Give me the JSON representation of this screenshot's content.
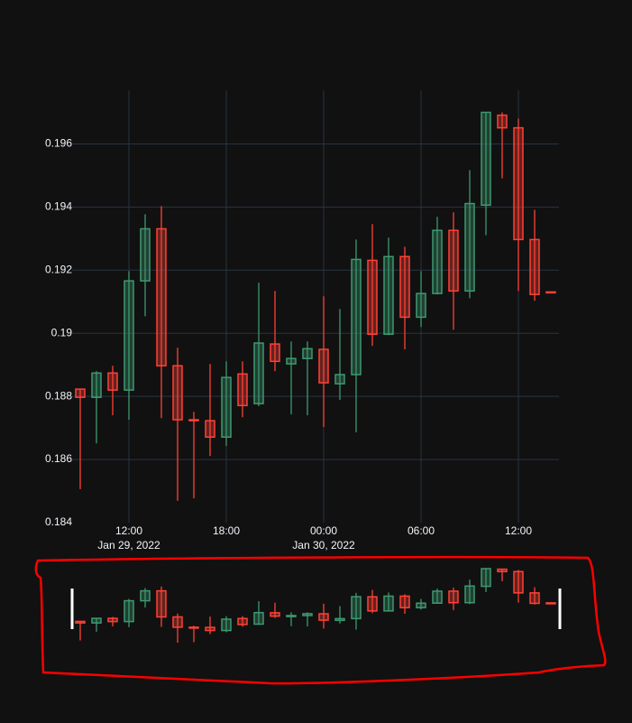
{
  "chart_data": {
    "type": "candlestick",
    "x": [
      "2022-01-29T09:00",
      "2022-01-29T10:00",
      "2022-01-29T11:00",
      "2022-01-29T12:00",
      "2022-01-29T13:00",
      "2022-01-29T14:00",
      "2022-01-29T15:00",
      "2022-01-29T16:00",
      "2022-01-29T17:00",
      "2022-01-29T18:00",
      "2022-01-29T19:00",
      "2022-01-29T20:00",
      "2022-01-29T21:00",
      "2022-01-29T22:00",
      "2022-01-29T23:00",
      "2022-01-30T00:00",
      "2022-01-30T01:00",
      "2022-01-30T02:00",
      "2022-01-30T03:00",
      "2022-01-30T04:00",
      "2022-01-30T05:00",
      "2022-01-30T06:00",
      "2022-01-30T07:00",
      "2022-01-30T08:00",
      "2022-01-30T09:00",
      "2022-01-30T10:00",
      "2022-01-30T11:00",
      "2022-01-30T12:00",
      "2022-01-30T13:00",
      "2022-01-30T14:00"
    ],
    "open": [
      0.18823,
      0.18797,
      0.18874,
      0.1882,
      0.19166,
      0.19331,
      0.18897,
      0.18726,
      0.18723,
      0.18671,
      0.18871,
      0.18777,
      0.18966,
      0.18903,
      0.1892,
      0.18949,
      0.1884,
      0.18869,
      0.19231,
      0.18997,
      0.19243,
      0.19051,
      0.19126,
      0.19326,
      0.19134,
      0.19406,
      0.19691,
      0.19651,
      0.19297,
      0.19131
    ],
    "high": [
      0.18823,
      0.1888,
      0.18897,
      0.19197,
      0.19377,
      0.19403,
      0.18954,
      0.18751,
      0.18903,
      0.18911,
      0.18911,
      0.1916,
      0.19134,
      0.18974,
      0.18974,
      0.19117,
      0.19077,
      0.19297,
      0.19346,
      0.19303,
      0.19274,
      0.19197,
      0.19369,
      0.19383,
      0.19517,
      0.197,
      0.197,
      0.1968,
      0.19391,
      0.19131
    ],
    "low": [
      0.18506,
      0.18651,
      0.1874,
      0.18726,
      0.19054,
      0.18731,
      0.18469,
      0.18477,
      0.18611,
      0.18643,
      0.18734,
      0.18769,
      0.1888,
      0.18743,
      0.1874,
      0.18703,
      0.18789,
      0.18686,
      0.1896,
      0.18994,
      0.18949,
      0.1902,
      0.19123,
      0.19011,
      0.19111,
      0.19311,
      0.19491,
      0.19134,
      0.19103,
      0.19129
    ],
    "close": [
      0.18797,
      0.18874,
      0.1882,
      0.19166,
      0.19331,
      0.18897,
      0.18726,
      0.18723,
      0.18671,
      0.1886,
      0.18771,
      0.18969,
      0.18911,
      0.1892,
      0.18951,
      0.18843,
      0.18869,
      0.19234,
      0.18997,
      0.19243,
      0.19051,
      0.19126,
      0.19326,
      0.19134,
      0.19411,
      0.197,
      0.19651,
      0.19297,
      0.19123,
      0.19129
    ],
    "increasing_color": "#3d9970",
    "decreasing_color": "#ff4136",
    "ylim": [
      0.184,
      0.1977
    ],
    "yticks": [
      0.184,
      0.186,
      0.188,
      0.19,
      0.192,
      0.194,
      0.196
    ],
    "xlim": [
      "2022-01-29T08:30",
      "2022-01-30T14:30"
    ],
    "xticks": [
      {
        "value": "2022-01-29T12:00",
        "label": "12:00"
      },
      {
        "value": "2022-01-29T18:00",
        "label": "18:00"
      },
      {
        "value": "2022-01-30T00:00",
        "label": "00:00"
      },
      {
        "value": "2022-01-30T06:00",
        "label": "06:00"
      },
      {
        "value": "2022-01-30T12:00",
        "label": "12:00"
      }
    ],
    "xtick_dates": [
      {
        "value": "2022-01-29T12:00",
        "label": "Jan 29, 2022"
      },
      {
        "value": "2022-01-30T00:00",
        "label": "Jan 30, 2022"
      }
    ],
    "grid": true,
    "rangeslider": true
  }
}
